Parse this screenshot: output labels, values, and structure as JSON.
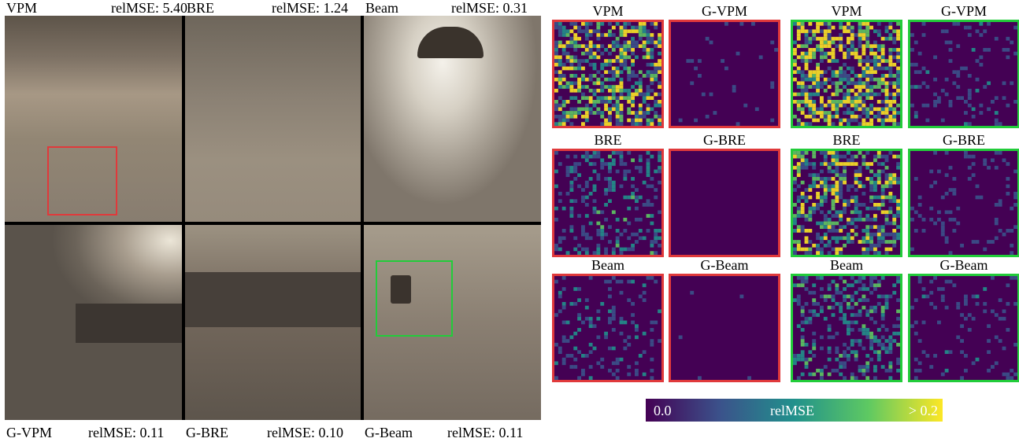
{
  "render_labels": {
    "top": [
      {
        "method": "VPM",
        "error": "relMSE: 5.40"
      },
      {
        "method": "BRE",
        "error": "relMSE: 1.24"
      },
      {
        "method": "Beam",
        "error": "relMSE: 0.31"
      }
    ],
    "bottom": [
      {
        "method": "G-VPM",
        "error": "relMSE: 0.11"
      },
      {
        "method": "G-BRE",
        "error": "relMSE: 0.10"
      },
      {
        "method": "G-Beam",
        "error": "relMSE: 0.11"
      }
    ]
  },
  "highlight_colors": {
    "red": "#e0393b",
    "green": "#22cc3a"
  },
  "heatmap_columns": [
    {
      "rows": [
        "VPM",
        "BRE",
        "Beam"
      ],
      "border": "#e0393b",
      "intensity": [
        0.85,
        0.45,
        0.35
      ]
    },
    {
      "rows": [
        "G-VPM",
        "G-BRE",
        "G-Beam"
      ],
      "border": "#e0393b",
      "intensity": [
        0.2,
        0.12,
        0.15
      ]
    },
    {
      "rows": [
        "VPM",
        "BRE",
        "Beam"
      ],
      "border": "#22cc3a",
      "intensity": [
        0.95,
        0.75,
        0.5
      ]
    },
    {
      "rows": [
        "G-VPM",
        "G-BRE",
        "G-Beam"
      ],
      "border": "#22cc3a",
      "intensity": [
        0.3,
        0.28,
        0.3
      ]
    }
  ],
  "colorbar": {
    "min_label": "0.0",
    "title": "relMSE",
    "max_label": "> 0.2",
    "colors": [
      "#440154",
      "#3b528b",
      "#21918c",
      "#5ec962",
      "#fde725"
    ]
  }
}
